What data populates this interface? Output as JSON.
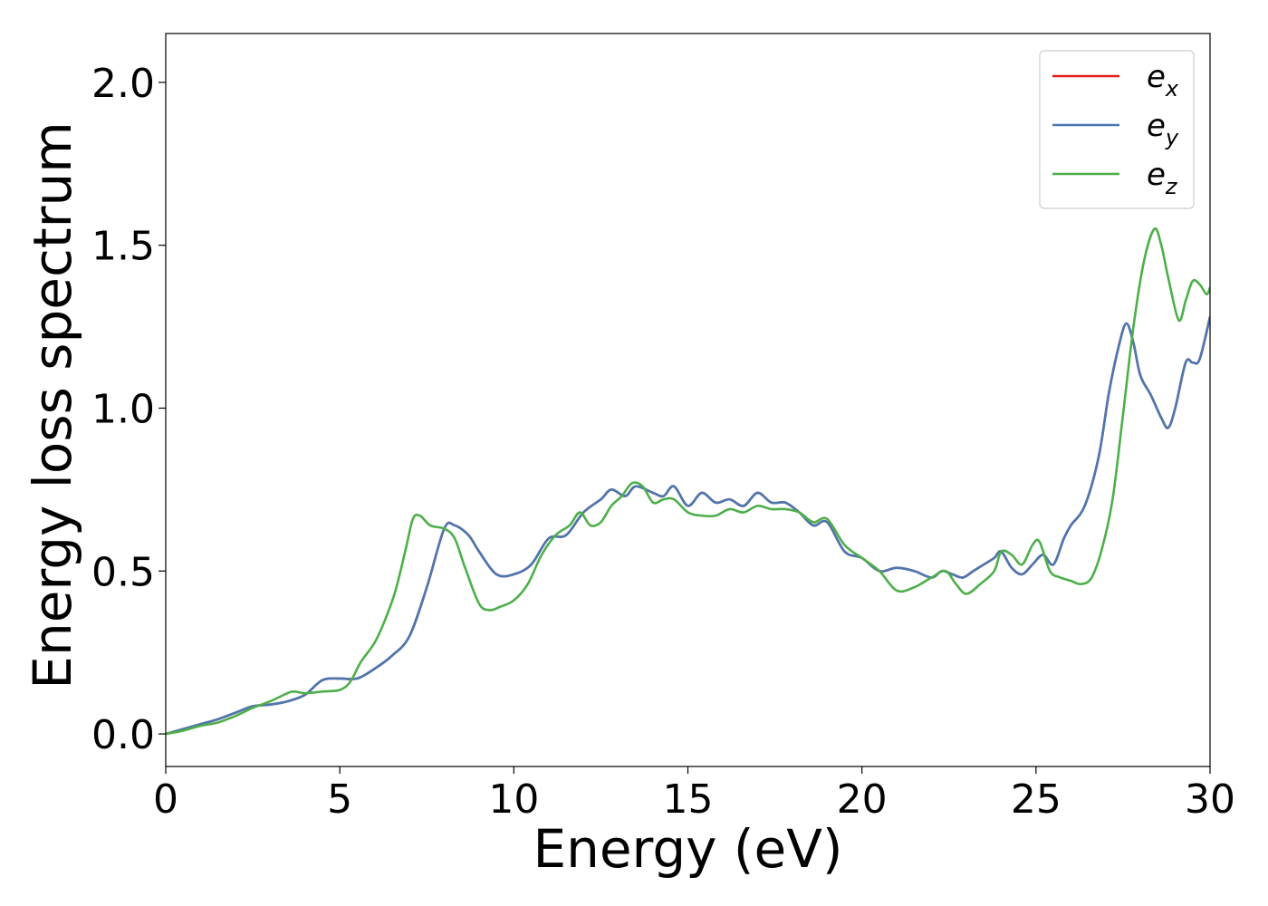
{
  "chart_data": {
    "type": "line",
    "title": "",
    "xlabel": "Energy (eV)",
    "ylabel": "Energy loss spectrum",
    "xlim": [
      0,
      30
    ],
    "ylim": [
      -0.1,
      2.15
    ],
    "xticks": [
      0,
      5,
      10,
      15,
      20,
      25,
      30
    ],
    "yticks": [
      0.0,
      0.5,
      1.0,
      1.5,
      2.0
    ],
    "xtick_labels": [
      "0",
      "5",
      "10",
      "15",
      "20",
      "25",
      "30"
    ],
    "ytick_labels": [
      "0.0",
      "0.5",
      "1.0",
      "1.5",
      "2.0"
    ],
    "grid": false,
    "legend_position": "top-right",
    "series": [
      {
        "name": "e_x",
        "label_base": "e",
        "label_sub": "x",
        "color": "#e41a1c",
        "x": [
          0,
          0.5,
          1.0,
          1.5,
          2.0,
          2.5,
          3.0,
          3.5,
          4.0,
          4.5,
          5.0,
          5.5,
          6.0,
          6.5,
          7.0,
          7.5,
          8.0,
          8.3,
          8.7,
          9.0,
          9.5,
          10.0,
          10.5,
          11.0,
          11.5,
          12.0,
          12.5,
          12.8,
          13.2,
          13.5,
          14.0,
          14.3,
          14.6,
          15.0,
          15.4,
          15.8,
          16.2,
          16.6,
          17.0,
          17.4,
          17.8,
          18.2,
          18.6,
          19.0,
          19.5,
          20.0,
          20.5,
          21.0,
          21.5,
          22.0,
          22.3,
          22.6,
          22.9,
          23.2,
          23.5,
          23.8,
          24.0,
          24.3,
          24.6,
          24.9,
          25.2,
          25.5,
          25.8,
          26.0,
          26.4,
          26.8,
          27.1,
          27.4,
          27.6,
          27.8,
          28.0,
          28.3,
          28.6,
          28.8,
          29.0,
          29.3,
          29.5,
          29.7,
          30.0
        ],
        "y": [
          0.0,
          0.015,
          0.03,
          0.045,
          0.065,
          0.085,
          0.09,
          0.1,
          0.12,
          0.165,
          0.17,
          0.17,
          0.2,
          0.24,
          0.3,
          0.45,
          0.63,
          0.64,
          0.61,
          0.56,
          0.49,
          0.49,
          0.52,
          0.6,
          0.61,
          0.68,
          0.72,
          0.75,
          0.73,
          0.76,
          0.74,
          0.73,
          0.76,
          0.7,
          0.74,
          0.71,
          0.72,
          0.7,
          0.74,
          0.71,
          0.71,
          0.68,
          0.64,
          0.65,
          0.56,
          0.54,
          0.5,
          0.51,
          0.5,
          0.48,
          0.5,
          0.49,
          0.48,
          0.5,
          0.52,
          0.54,
          0.56,
          0.51,
          0.49,
          0.52,
          0.55,
          0.52,
          0.6,
          0.64,
          0.7,
          0.85,
          1.05,
          1.2,
          1.26,
          1.2,
          1.1,
          1.04,
          0.97,
          0.94,
          1.0,
          1.14,
          1.14,
          1.15,
          1.28
        ]
      },
      {
        "name": "e_y",
        "label_base": "e",
        "label_sub": "y",
        "color": "#4a78b0",
        "x": [
          0,
          0.5,
          1.0,
          1.5,
          2.0,
          2.5,
          3.0,
          3.5,
          4.0,
          4.5,
          5.0,
          5.5,
          6.0,
          6.5,
          7.0,
          7.5,
          8.0,
          8.3,
          8.7,
          9.0,
          9.5,
          10.0,
          10.5,
          11.0,
          11.5,
          12.0,
          12.5,
          12.8,
          13.2,
          13.5,
          14.0,
          14.3,
          14.6,
          15.0,
          15.4,
          15.8,
          16.2,
          16.6,
          17.0,
          17.4,
          17.8,
          18.2,
          18.6,
          19.0,
          19.5,
          20.0,
          20.5,
          21.0,
          21.5,
          22.0,
          22.3,
          22.6,
          22.9,
          23.2,
          23.5,
          23.8,
          24.0,
          24.3,
          24.6,
          24.9,
          25.2,
          25.5,
          25.8,
          26.0,
          26.4,
          26.8,
          27.1,
          27.4,
          27.6,
          27.8,
          28.0,
          28.3,
          28.6,
          28.8,
          29.0,
          29.3,
          29.5,
          29.7,
          30.0
        ],
        "y": [
          0.0,
          0.015,
          0.03,
          0.045,
          0.065,
          0.085,
          0.09,
          0.1,
          0.12,
          0.165,
          0.17,
          0.17,
          0.2,
          0.24,
          0.3,
          0.45,
          0.63,
          0.64,
          0.61,
          0.56,
          0.49,
          0.49,
          0.52,
          0.6,
          0.61,
          0.68,
          0.72,
          0.75,
          0.73,
          0.76,
          0.74,
          0.73,
          0.76,
          0.7,
          0.74,
          0.71,
          0.72,
          0.7,
          0.74,
          0.71,
          0.71,
          0.68,
          0.64,
          0.65,
          0.56,
          0.54,
          0.5,
          0.51,
          0.5,
          0.48,
          0.5,
          0.49,
          0.48,
          0.5,
          0.52,
          0.54,
          0.56,
          0.51,
          0.49,
          0.52,
          0.55,
          0.52,
          0.6,
          0.64,
          0.7,
          0.85,
          1.05,
          1.2,
          1.26,
          1.2,
          1.1,
          1.04,
          0.97,
          0.94,
          1.0,
          1.14,
          1.14,
          1.15,
          1.28
        ]
      },
      {
        "name": "e_z",
        "label_base": "e",
        "label_sub": "z",
        "color": "#4daf4a",
        "x": [
          0,
          0.5,
          1.0,
          1.5,
          2.0,
          2.5,
          3.0,
          3.5,
          3.7,
          4.0,
          4.5,
          5.0,
          5.3,
          5.6,
          6.0,
          6.3,
          6.6,
          6.9,
          7.1,
          7.3,
          7.6,
          8.0,
          8.3,
          8.6,
          9.0,
          9.3,
          9.6,
          10.0,
          10.4,
          10.8,
          11.2,
          11.6,
          11.9,
          12.2,
          12.5,
          12.8,
          13.1,
          13.4,
          13.7,
          14.0,
          14.3,
          14.6,
          15.0,
          15.4,
          15.8,
          16.2,
          16.6,
          17.0,
          17.4,
          17.8,
          18.2,
          18.6,
          19.0,
          19.5,
          20.0,
          20.5,
          21.0,
          21.5,
          22.0,
          22.4,
          22.7,
          23.0,
          23.4,
          23.8,
          24.0,
          24.3,
          24.6,
          24.9,
          25.1,
          25.4,
          25.7,
          26.0,
          26.3,
          26.6,
          26.9,
          27.2,
          27.5,
          27.8,
          28.1,
          28.4,
          28.6,
          28.8,
          29.1,
          29.3,
          29.5,
          29.7,
          29.9,
          30.0
        ],
        "y": [
          0.0,
          0.01,
          0.025,
          0.035,
          0.055,
          0.08,
          0.1,
          0.125,
          0.13,
          0.125,
          0.13,
          0.135,
          0.16,
          0.22,
          0.28,
          0.35,
          0.44,
          0.57,
          0.66,
          0.67,
          0.64,
          0.63,
          0.6,
          0.51,
          0.4,
          0.38,
          0.39,
          0.41,
          0.46,
          0.55,
          0.61,
          0.64,
          0.68,
          0.64,
          0.65,
          0.7,
          0.73,
          0.77,
          0.76,
          0.71,
          0.72,
          0.72,
          0.68,
          0.67,
          0.67,
          0.69,
          0.68,
          0.7,
          0.69,
          0.69,
          0.68,
          0.65,
          0.66,
          0.58,
          0.54,
          0.5,
          0.44,
          0.45,
          0.48,
          0.5,
          0.46,
          0.43,
          0.46,
          0.5,
          0.56,
          0.55,
          0.52,
          0.58,
          0.59,
          0.5,
          0.48,
          0.47,
          0.46,
          0.48,
          0.57,
          0.72,
          0.98,
          1.25,
          1.45,
          1.55,
          1.5,
          1.4,
          1.27,
          1.33,
          1.39,
          1.38,
          1.35,
          1.37
        ]
      }
    ]
  }
}
